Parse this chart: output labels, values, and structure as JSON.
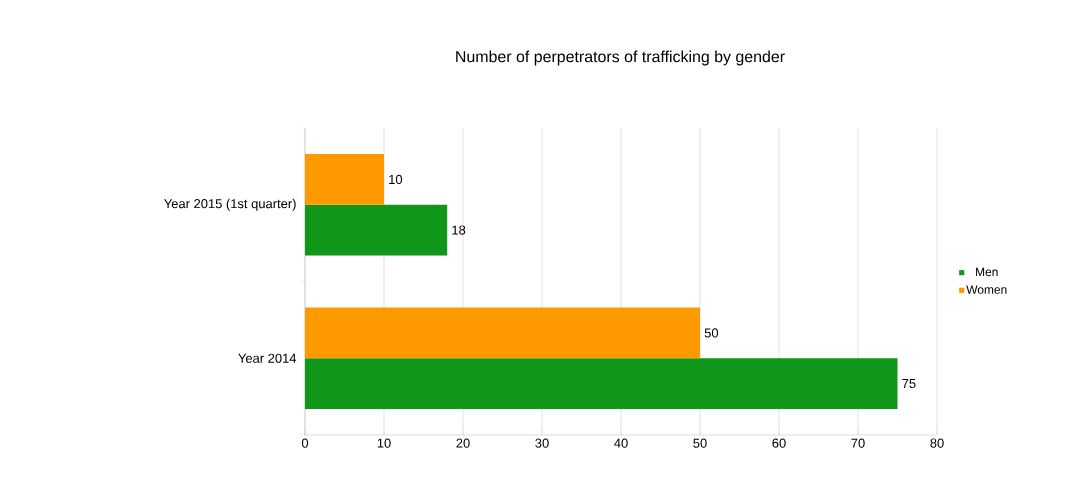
{
  "chart_data": {
    "type": "bar",
    "orientation": "horizontal",
    "title": "Number of perpetrators of trafficking by gender",
    "categories": [
      "Year 2015 (1st quarter)",
      "Year 2014"
    ],
    "series": [
      {
        "name": "Men",
        "color": "#109618",
        "values": [
          18,
          75
        ]
      },
      {
        "name": "Women",
        "color": "#ff9900",
        "values": [
          10,
          50
        ]
      }
    ],
    "xlim": [
      0,
      80
    ],
    "xticks": [
      0,
      10,
      20,
      30,
      40,
      50,
      60,
      70,
      80
    ],
    "grid": "x",
    "legend": "right",
    "data_labels": true
  }
}
